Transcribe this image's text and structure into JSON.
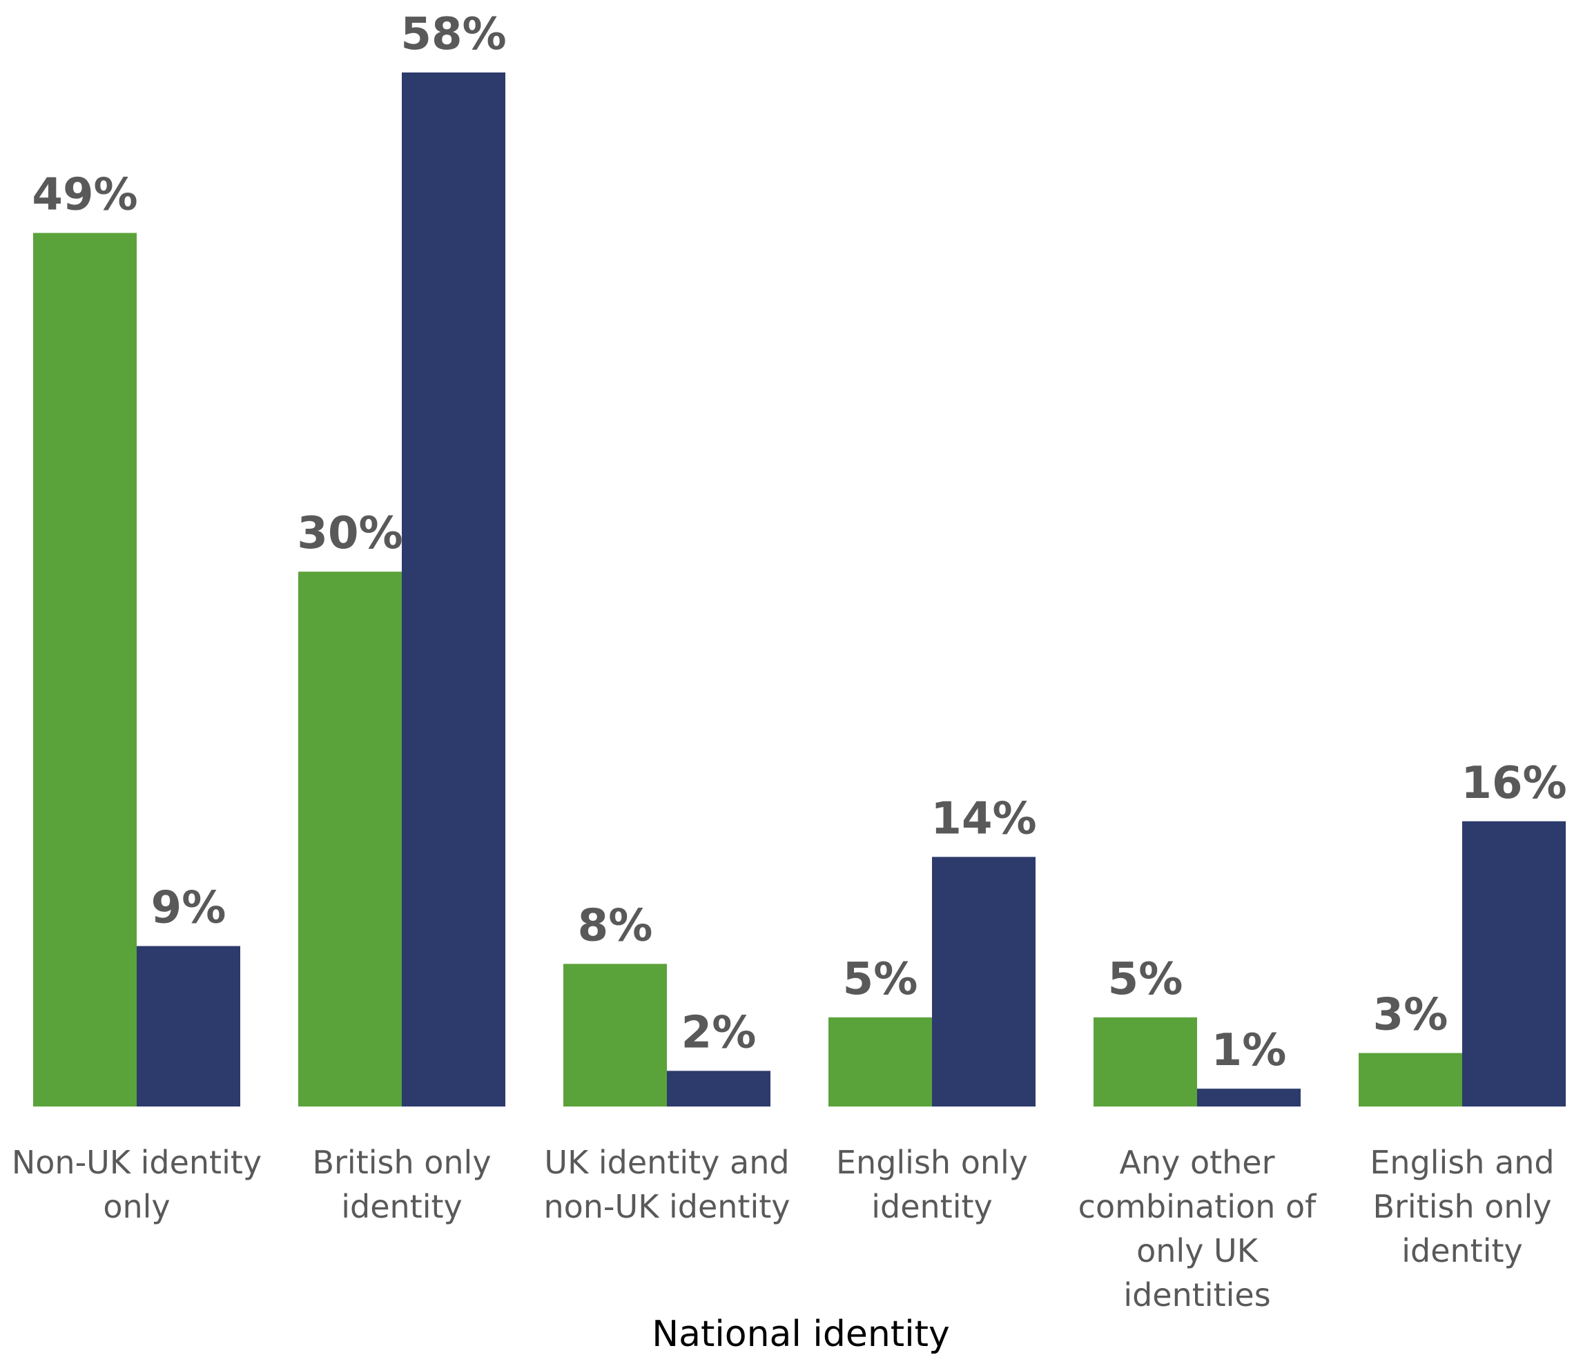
{
  "chart_data": {
    "type": "bar",
    "title": "",
    "xlabel": "National identity",
    "ylabel": "",
    "ylim": [
      0,
      60
    ],
    "grid": false,
    "legend": "none",
    "value_suffix": "%",
    "categories": [
      [
        "Non-UK identity",
        "only"
      ],
      [
        "British only",
        "identity"
      ],
      [
        "UK identity and",
        "non-UK identity"
      ],
      [
        "English only",
        "identity"
      ],
      [
        "Any other",
        "combination of",
        "only UK",
        "identities"
      ],
      [
        "English and",
        "British only",
        "identity"
      ]
    ],
    "series": [
      {
        "color": "#5aa33a",
        "values": [
          49,
          30,
          8,
          5,
          5,
          3
        ]
      },
      {
        "color": "#2d3a6c",
        "values": [
          9,
          58,
          2,
          14,
          1,
          16
        ]
      }
    ]
  }
}
